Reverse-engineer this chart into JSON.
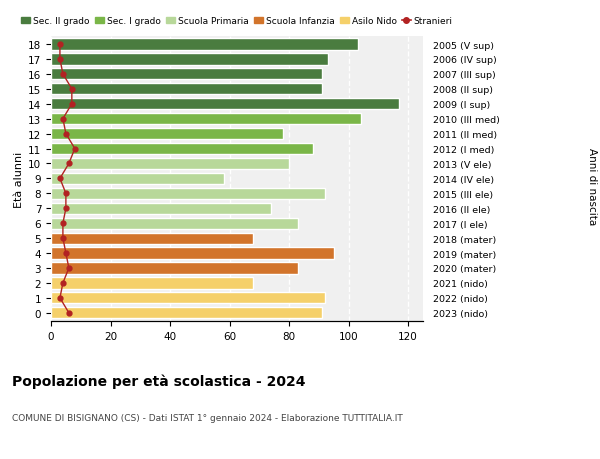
{
  "ages": [
    18,
    17,
    16,
    15,
    14,
    13,
    12,
    11,
    10,
    9,
    8,
    7,
    6,
    5,
    4,
    3,
    2,
    1,
    0
  ],
  "years_labels": [
    "2005 (V sup)",
    "2006 (IV sup)",
    "2007 (III sup)",
    "2008 (II sup)",
    "2009 (I sup)",
    "2010 (III med)",
    "2011 (II med)",
    "2012 (I med)",
    "2013 (V ele)",
    "2014 (IV ele)",
    "2015 (III ele)",
    "2016 (II ele)",
    "2017 (I ele)",
    "2018 (mater)",
    "2019 (mater)",
    "2020 (mater)",
    "2021 (nido)",
    "2022 (nido)",
    "2023 (nido)"
  ],
  "bar_values": [
    103,
    93,
    91,
    91,
    117,
    104,
    78,
    88,
    80,
    58,
    92,
    74,
    83,
    68,
    95,
    83,
    68,
    92,
    91
  ],
  "bar_colors": [
    "#4a7c3f",
    "#4a7c3f",
    "#4a7c3f",
    "#4a7c3f",
    "#4a7c3f",
    "#7ab648",
    "#7ab648",
    "#7ab648",
    "#b8d89a",
    "#b8d89a",
    "#b8d89a",
    "#b8d89a",
    "#b8d89a",
    "#d2742b",
    "#d2742b",
    "#d2742b",
    "#f5d06a",
    "#f5d06a",
    "#f5d06a"
  ],
  "stranieri_values": [
    3,
    3,
    4,
    7,
    7,
    4,
    5,
    8,
    6,
    3,
    5,
    5,
    4,
    4,
    5,
    6,
    4,
    3,
    6
  ],
  "stranieri_color": "#b22222",
  "legend_labels": [
    "Sec. II grado",
    "Sec. I grado",
    "Scuola Primaria",
    "Scuola Infanzia",
    "Asilo Nido",
    "Stranieri"
  ],
  "legend_colors": [
    "#4a7c3f",
    "#7ab648",
    "#b8d89a",
    "#d2742b",
    "#f5d06a",
    "#b22222"
  ],
  "title": "Popolazione per età scolastica - 2024",
  "subtitle": "COMUNE DI BISIGNANO (CS) - Dati ISTAT 1° gennaio 2024 - Elaborazione TUTTITALIA.IT",
  "ylabel_left": "Età alunni",
  "ylabel_right": "Anni di nascita",
  "xlim": [
    0,
    125
  ],
  "xticks": [
    0,
    20,
    40,
    60,
    80,
    100,
    120
  ],
  "bg_color": "#f0f0f0",
  "bar_height": 0.75
}
